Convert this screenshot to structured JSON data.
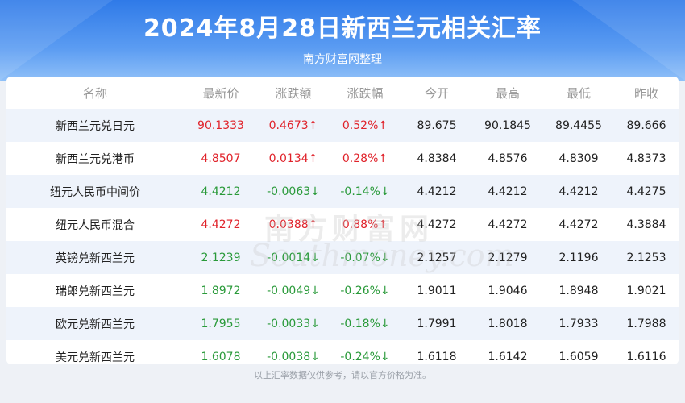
{
  "header": {
    "title": "2024年8月28日新西兰元相关汇率",
    "subtitle": "南方财富网整理"
  },
  "table": {
    "columns": [
      "名称",
      "最新价",
      "涨跌额",
      "涨跌幅",
      "今开",
      "最高",
      "最低",
      "昨收"
    ],
    "rows": [
      {
        "name": "新西兰元兑日元",
        "latest": "90.1333",
        "change": "0.4673↑",
        "pct": "0.52%↑",
        "open": "89.675",
        "high": "90.1845",
        "low": "89.4455",
        "prev": "89.666",
        "direction": "up"
      },
      {
        "name": "新西兰元兑港币",
        "latest": "4.8507",
        "change": "0.0134↑",
        "pct": "0.28%↑",
        "open": "4.8384",
        "high": "4.8576",
        "low": "4.8309",
        "prev": "4.8373",
        "direction": "up"
      },
      {
        "name": "纽元人民币中间价",
        "latest": "4.4212",
        "change": "-0.0063↓",
        "pct": "-0.14%↓",
        "open": "4.4212",
        "high": "4.4212",
        "low": "4.4212",
        "prev": "4.4275",
        "direction": "down"
      },
      {
        "name": "纽元人民币混合",
        "latest": "4.4272",
        "change": "0.0388↑",
        "pct": "0.88%↑",
        "open": "4.4272",
        "high": "4.4272",
        "low": "4.4272",
        "prev": "4.3884",
        "direction": "up"
      },
      {
        "name": "英镑兑新西兰元",
        "latest": "2.1239",
        "change": "-0.0014↓",
        "pct": "-0.07%↓",
        "open": "2.1257",
        "high": "2.1279",
        "low": "2.1196",
        "prev": "2.1253",
        "direction": "down"
      },
      {
        "name": "瑞郎兑新西兰元",
        "latest": "1.8972",
        "change": "-0.0049↓",
        "pct": "-0.26%↓",
        "open": "1.9011",
        "high": "1.9046",
        "low": "1.8948",
        "prev": "1.9021",
        "direction": "down"
      },
      {
        "name": "欧元兑新西兰元",
        "latest": "1.7955",
        "change": "-0.0033↓",
        "pct": "-0.18%↓",
        "open": "1.7991",
        "high": "1.8018",
        "low": "1.7933",
        "prev": "1.7988",
        "direction": "down"
      },
      {
        "name": "美元兑新西兰元",
        "latest": "1.6078",
        "change": "-0.0038↓",
        "pct": "-0.24%↓",
        "open": "1.6118",
        "high": "1.6142",
        "low": "1.6059",
        "prev": "1.6116",
        "direction": "down"
      }
    ]
  },
  "watermark": {
    "cn": "南方财富网",
    "en": "Southmoney.com"
  },
  "footer": {
    "note": "以上汇率数据仅供参考，请以官方价格为准。"
  },
  "colors": {
    "up": "#e0232b",
    "down": "#2a9a3a",
    "header_blue": "#2f7ae8"
  }
}
